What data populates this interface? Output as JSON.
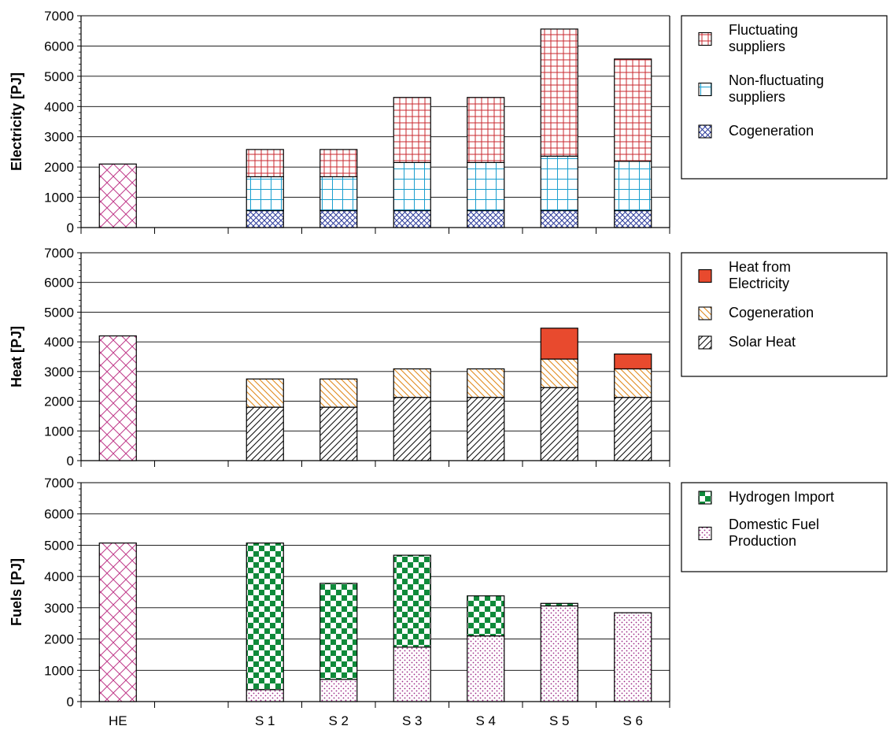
{
  "chart_data": [
    {
      "type": "bar",
      "stacked": true,
      "ylabel": "Electricity [PJ]",
      "ylim": [
        0,
        7000
      ],
      "yticks": [
        "0",
        "1000",
        "2000",
        "3000",
        "4000",
        "5000",
        "6000",
        "7000"
      ],
      "categories": [
        "HE",
        "",
        "S 1",
        "S 2",
        "S 3",
        "S 4",
        "S 5",
        "S 6"
      ],
      "reference": {
        "category": "HE",
        "value": 2100,
        "color": "#c03a8a",
        "pattern": "crosshatch"
      },
      "series": [
        {
          "name": "Cogeneration",
          "color": "#2b3a9a",
          "pattern": "fine-crosshatch",
          "values": [
            null,
            null,
            560,
            560,
            560,
            560,
            560,
            560
          ]
        },
        {
          "name": "Non-fluctuating suppliers",
          "color": "#1a9fcf",
          "pattern": "grid",
          "values": [
            null,
            null,
            1120,
            1120,
            1590,
            1590,
            1800,
            1630
          ]
        },
        {
          "name": "Fluctuating suppliers",
          "color": "#c8282f",
          "pattern": "small-grid",
          "values": [
            null,
            null,
            900,
            900,
            2150,
            2150,
            4200,
            3380
          ]
        }
      ],
      "legend": {
        "position": "right",
        "entries": [
          {
            "label_lines": [
              "Fluctuating",
              "suppliers"
            ],
            "series": "Fluctuating suppliers"
          },
          {
            "label_lines": [
              "Non-fluctuating",
              "suppliers"
            ],
            "series": "Non-fluctuating suppliers"
          },
          {
            "label_lines": [
              "Cogeneration"
            ],
            "series": "Cogeneration"
          }
        ]
      }
    },
    {
      "type": "bar",
      "stacked": true,
      "ylabel": "Heat [PJ]",
      "ylim": [
        0,
        7000
      ],
      "yticks": [
        "0",
        "1000",
        "2000",
        "3000",
        "4000",
        "5000",
        "6000",
        "7000"
      ],
      "categories": [
        "HE",
        "",
        "S 1",
        "S 2",
        "S 3",
        "S 4",
        "S 5",
        "S 6"
      ],
      "reference": {
        "category": "HE",
        "value": 4200,
        "color": "#c03a8a",
        "pattern": "crosshatch"
      },
      "series": [
        {
          "name": "Solar Heat",
          "color": "#111111",
          "pattern": "diagonal",
          "values": [
            null,
            null,
            1800,
            1800,
            2130,
            2130,
            2460,
            2130
          ]
        },
        {
          "name": "Cogeneration",
          "color": "#e08a1e",
          "pattern": "back-diagonal",
          "values": [
            null,
            null,
            950,
            950,
            960,
            960,
            960,
            960
          ]
        },
        {
          "name": "Heat from Electricity",
          "color": "#e84a2e",
          "pattern": "solid",
          "values": [
            null,
            null,
            0,
            0,
            0,
            0,
            1040,
            500
          ]
        }
      ],
      "legend": {
        "position": "right",
        "entries": [
          {
            "label_lines": [
              "Heat from",
              "Electricity"
            ],
            "series": "Heat from Electricity"
          },
          {
            "label_lines": [
              "Cogeneration"
            ],
            "series": "Cogeneration"
          },
          {
            "label_lines": [
              "Solar Heat"
            ],
            "series": "Solar Heat"
          }
        ]
      }
    },
    {
      "type": "bar",
      "stacked": true,
      "ylabel": "Fuels [PJ]",
      "ylim": [
        0,
        7000
      ],
      "yticks": [
        "0",
        "1000",
        "2000",
        "3000",
        "4000",
        "5000",
        "6000",
        "7000"
      ],
      "categories": [
        "HE",
        "",
        "S 1",
        "S 2",
        "S 3",
        "S 4",
        "S 5",
        "S 6"
      ],
      "reference": {
        "category": "HE",
        "value": 5070,
        "color": "#c03a8a",
        "pattern": "crosshatch"
      },
      "series": [
        {
          "name": "Domestic Fuel Production",
          "color": "#9c2a86",
          "pattern": "dots",
          "values": [
            null,
            null,
            380,
            710,
            1740,
            2100,
            3060,
            2840
          ]
        },
        {
          "name": "Hydrogen Import",
          "color": "#0f8a3a",
          "pattern": "checker",
          "values": [
            null,
            null,
            4690,
            3070,
            2940,
            1280,
            80,
            0
          ]
        }
      ],
      "legend": {
        "position": "right",
        "entries": [
          {
            "label_lines": [
              "Hydrogen Import"
            ],
            "series": "Hydrogen Import"
          },
          {
            "label_lines": [
              "Domestic Fuel",
              "Production"
            ],
            "series": "Domestic Fuel Production"
          }
        ]
      }
    }
  ]
}
